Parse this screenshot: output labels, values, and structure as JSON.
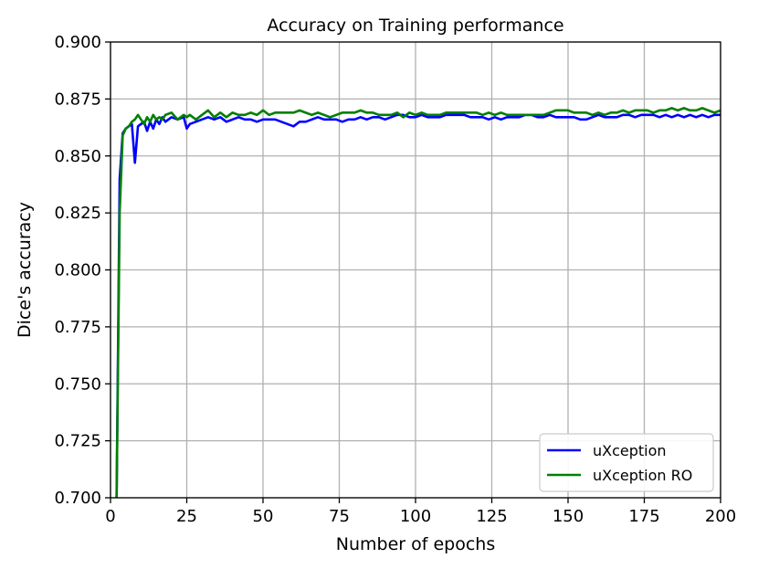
{
  "chart_data": {
    "type": "line",
    "title": "Accuracy on Training performance",
    "xlabel": "Number of epochs",
    "ylabel": "Dice's accuracy",
    "xlim": [
      0,
      200
    ],
    "ylim": [
      0.7,
      0.9
    ],
    "xticks": [
      0,
      25,
      50,
      75,
      100,
      125,
      150,
      175,
      200
    ],
    "xtick_labels": [
      "0",
      "25",
      "50",
      "75",
      "100",
      "125",
      "150",
      "175",
      "200"
    ],
    "yticks": [
      0.7,
      0.725,
      0.75,
      0.775,
      0.8,
      0.825,
      0.85,
      0.875,
      0.9
    ],
    "ytick_labels": [
      "0.700",
      "0.725",
      "0.750",
      "0.775",
      "0.800",
      "0.825",
      "0.850",
      "0.875",
      "0.900"
    ],
    "grid": true,
    "legend_position": "bottom-right",
    "series": [
      {
        "name": "uXception",
        "color": "#0000ff",
        "points": [
          [
            2,
            0.7
          ],
          [
            3,
            0.84
          ],
          [
            4,
            0.86
          ],
          [
            5,
            0.862
          ],
          [
            6,
            0.863
          ],
          [
            7,
            0.864
          ],
          [
            8,
            0.847
          ],
          [
            9,
            0.863
          ],
          [
            10,
            0.864
          ],
          [
            11,
            0.865
          ],
          [
            12,
            0.861
          ],
          [
            13,
            0.865
          ],
          [
            14,
            0.862
          ],
          [
            15,
            0.866
          ],
          [
            16,
            0.864
          ],
          [
            17,
            0.867
          ],
          [
            18,
            0.865
          ],
          [
            20,
            0.867
          ],
          [
            22,
            0.866
          ],
          [
            24,
            0.867
          ],
          [
            25,
            0.862
          ],
          [
            26,
            0.864
          ],
          [
            28,
            0.865
          ],
          [
            30,
            0.866
          ],
          [
            32,
            0.867
          ],
          [
            34,
            0.866
          ],
          [
            36,
            0.867
          ],
          [
            38,
            0.865
          ],
          [
            40,
            0.866
          ],
          [
            42,
            0.867
          ],
          [
            44,
            0.866
          ],
          [
            46,
            0.866
          ],
          [
            48,
            0.865
          ],
          [
            50,
            0.866
          ],
          [
            52,
            0.866
          ],
          [
            54,
            0.866
          ],
          [
            56,
            0.865
          ],
          [
            58,
            0.864
          ],
          [
            60,
            0.863
          ],
          [
            62,
            0.865
          ],
          [
            64,
            0.865
          ],
          [
            66,
            0.866
          ],
          [
            68,
            0.867
          ],
          [
            70,
            0.866
          ],
          [
            72,
            0.866
          ],
          [
            74,
            0.866
          ],
          [
            76,
            0.865
          ],
          [
            78,
            0.866
          ],
          [
            80,
            0.866
          ],
          [
            82,
            0.867
          ],
          [
            84,
            0.866
          ],
          [
            86,
            0.867
          ],
          [
            88,
            0.867
          ],
          [
            90,
            0.866
          ],
          [
            92,
            0.867
          ],
          [
            94,
            0.868
          ],
          [
            96,
            0.868
          ],
          [
            98,
            0.867
          ],
          [
            100,
            0.867
          ],
          [
            102,
            0.868
          ],
          [
            104,
            0.867
          ],
          [
            106,
            0.867
          ],
          [
            108,
            0.867
          ],
          [
            110,
            0.868
          ],
          [
            112,
            0.868
          ],
          [
            114,
            0.868
          ],
          [
            116,
            0.868
          ],
          [
            118,
            0.867
          ],
          [
            120,
            0.867
          ],
          [
            122,
            0.867
          ],
          [
            124,
            0.866
          ],
          [
            126,
            0.867
          ],
          [
            128,
            0.866
          ],
          [
            130,
            0.867
          ],
          [
            132,
            0.867
          ],
          [
            134,
            0.867
          ],
          [
            136,
            0.868
          ],
          [
            138,
            0.868
          ],
          [
            140,
            0.867
          ],
          [
            142,
            0.867
          ],
          [
            144,
            0.868
          ],
          [
            146,
            0.867
          ],
          [
            148,
            0.867
          ],
          [
            150,
            0.867
          ],
          [
            152,
            0.867
          ],
          [
            154,
            0.866
          ],
          [
            156,
            0.866
          ],
          [
            158,
            0.867
          ],
          [
            160,
            0.868
          ],
          [
            162,
            0.867
          ],
          [
            164,
            0.867
          ],
          [
            166,
            0.867
          ],
          [
            168,
            0.868
          ],
          [
            170,
            0.868
          ],
          [
            172,
            0.867
          ],
          [
            174,
            0.868
          ],
          [
            176,
            0.868
          ],
          [
            178,
            0.868
          ],
          [
            180,
            0.867
          ],
          [
            182,
            0.868
          ],
          [
            184,
            0.867
          ],
          [
            186,
            0.868
          ],
          [
            188,
            0.867
          ],
          [
            190,
            0.868
          ],
          [
            192,
            0.867
          ],
          [
            194,
            0.868
          ],
          [
            196,
            0.867
          ],
          [
            198,
            0.868
          ],
          [
            200,
            0.868
          ]
        ]
      },
      {
        "name": "uXception RO",
        "color": "#008000",
        "points": [
          [
            2,
            0.7
          ],
          [
            3,
            0.825
          ],
          [
            4,
            0.859
          ],
          [
            5,
            0.862
          ],
          [
            6,
            0.863
          ],
          [
            7,
            0.865
          ],
          [
            8,
            0.866
          ],
          [
            9,
            0.868
          ],
          [
            10,
            0.866
          ],
          [
            11,
            0.864
          ],
          [
            12,
            0.867
          ],
          [
            13,
            0.865
          ],
          [
            14,
            0.868
          ],
          [
            15,
            0.866
          ],
          [
            16,
            0.867
          ],
          [
            17,
            0.866
          ],
          [
            18,
            0.868
          ],
          [
            20,
            0.869
          ],
          [
            22,
            0.866
          ],
          [
            24,
            0.868
          ],
          [
            25,
            0.867
          ],
          [
            26,
            0.868
          ],
          [
            28,
            0.866
          ],
          [
            30,
            0.868
          ],
          [
            32,
            0.87
          ],
          [
            34,
            0.867
          ],
          [
            36,
            0.869
          ],
          [
            38,
            0.867
          ],
          [
            40,
            0.869
          ],
          [
            42,
            0.868
          ],
          [
            44,
            0.868
          ],
          [
            46,
            0.869
          ],
          [
            48,
            0.868
          ],
          [
            50,
            0.87
          ],
          [
            52,
            0.868
          ],
          [
            54,
            0.869
          ],
          [
            56,
            0.869
          ],
          [
            58,
            0.869
          ],
          [
            60,
            0.869
          ],
          [
            62,
            0.87
          ],
          [
            64,
            0.869
          ],
          [
            66,
            0.868
          ],
          [
            68,
            0.869
          ],
          [
            70,
            0.868
          ],
          [
            72,
            0.867
          ],
          [
            74,
            0.868
          ],
          [
            76,
            0.869
          ],
          [
            78,
            0.869
          ],
          [
            80,
            0.869
          ],
          [
            82,
            0.87
          ],
          [
            84,
            0.869
          ],
          [
            86,
            0.869
          ],
          [
            88,
            0.868
          ],
          [
            90,
            0.868
          ],
          [
            92,
            0.868
          ],
          [
            94,
            0.869
          ],
          [
            96,
            0.867
          ],
          [
            98,
            0.869
          ],
          [
            100,
            0.868
          ],
          [
            102,
            0.869
          ],
          [
            104,
            0.868
          ],
          [
            106,
            0.868
          ],
          [
            108,
            0.868
          ],
          [
            110,
            0.869
          ],
          [
            112,
            0.869
          ],
          [
            114,
            0.869
          ],
          [
            116,
            0.869
          ],
          [
            118,
            0.869
          ],
          [
            120,
            0.869
          ],
          [
            122,
            0.868
          ],
          [
            124,
            0.869
          ],
          [
            126,
            0.868
          ],
          [
            128,
            0.869
          ],
          [
            130,
            0.868
          ],
          [
            132,
            0.868
          ],
          [
            134,
            0.868
          ],
          [
            136,
            0.868
          ],
          [
            138,
            0.868
          ],
          [
            140,
            0.868
          ],
          [
            142,
            0.868
          ],
          [
            144,
            0.869
          ],
          [
            146,
            0.87
          ],
          [
            148,
            0.87
          ],
          [
            150,
            0.87
          ],
          [
            152,
            0.869
          ],
          [
            154,
            0.869
          ],
          [
            156,
            0.869
          ],
          [
            158,
            0.868
          ],
          [
            160,
            0.869
          ],
          [
            162,
            0.868
          ],
          [
            164,
            0.869
          ],
          [
            166,
            0.869
          ],
          [
            168,
            0.87
          ],
          [
            170,
            0.869
          ],
          [
            172,
            0.87
          ],
          [
            174,
            0.87
          ],
          [
            176,
            0.87
          ],
          [
            178,
            0.869
          ],
          [
            180,
            0.87
          ],
          [
            182,
            0.87
          ],
          [
            184,
            0.871
          ],
          [
            186,
            0.87
          ],
          [
            188,
            0.871
          ],
          [
            190,
            0.87
          ],
          [
            192,
            0.87
          ],
          [
            194,
            0.871
          ],
          [
            196,
            0.87
          ],
          [
            198,
            0.869
          ],
          [
            200,
            0.87
          ]
        ]
      }
    ]
  }
}
